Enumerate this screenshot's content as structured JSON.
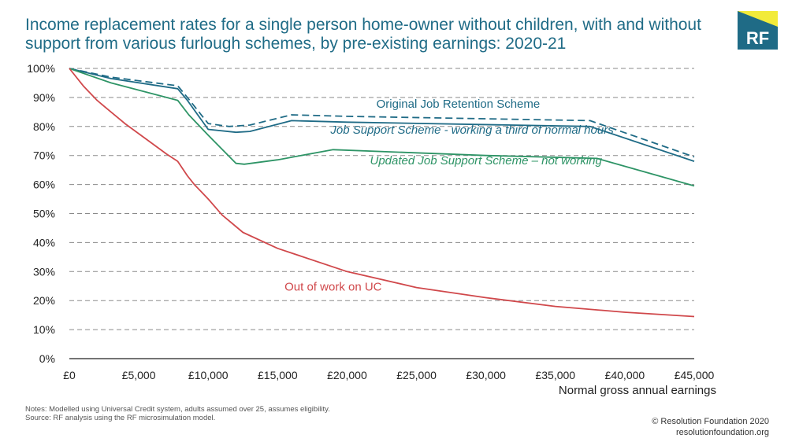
{
  "title": "Income replacement rates for a single person home-owner without children, with and without support from various furlough schemes, by pre-existing earnings: 2020-21",
  "logo": {
    "text": "RF",
    "colors": {
      "box": "#1f6b86",
      "accent": "#f2eb3a",
      "text": "#ffffff"
    }
  },
  "notes": {
    "line1": "Notes: Modelled using Universal Credit system, adults assumed over 25, assumes eligibility.",
    "line2": "Source: RF analysis using the RF microsimulation model."
  },
  "footer": {
    "copyright": "© Resolution Foundation 2020",
    "url": "resolutionfoundation.org"
  },
  "chart_data": {
    "type": "line",
    "xlabel": "Normal gross annual earnings",
    "ylabel": "",
    "xlim": [
      0,
      45000
    ],
    "ylim": [
      0,
      100
    ],
    "grid": true,
    "x_ticks": [
      {
        "value": 0,
        "label": "£0"
      },
      {
        "value": 5000,
        "label": "£5,000"
      },
      {
        "value": 10000,
        "label": "£10,000"
      },
      {
        "value": 15000,
        "label": "£15,000"
      },
      {
        "value": 20000,
        "label": "£20,000"
      },
      {
        "value": 25000,
        "label": "£25,000"
      },
      {
        "value": 30000,
        "label": "£30,000"
      },
      {
        "value": 35000,
        "label": "£35,000"
      },
      {
        "value": 40000,
        "label": "£40,000"
      },
      {
        "value": 45000,
        "label": "£45,000"
      }
    ],
    "y_ticks": [
      {
        "value": 0,
        "label": "0%"
      },
      {
        "value": 10,
        "label": "10%"
      },
      {
        "value": 20,
        "label": "20%"
      },
      {
        "value": 30,
        "label": "30%"
      },
      {
        "value": 40,
        "label": "40%"
      },
      {
        "value": 50,
        "label": "50%"
      },
      {
        "value": 60,
        "label": "60%"
      },
      {
        "value": 70,
        "label": "70%"
      },
      {
        "value": 80,
        "label": "80%"
      },
      {
        "value": 90,
        "label": "90%"
      },
      {
        "value": 100,
        "label": "100%"
      }
    ],
    "series": [
      {
        "name": "Original Job Retention Scheme",
        "color": "#1f6b86",
        "dash": true,
        "label_at": {
          "x": 28000,
          "y": 86.5
        },
        "points": [
          [
            0,
            100
          ],
          [
            3000,
            97
          ],
          [
            7800,
            94
          ],
          [
            8500,
            90
          ],
          [
            10000,
            81
          ],
          [
            11500,
            80
          ],
          [
            13000,
            80.5
          ],
          [
            16000,
            84
          ],
          [
            20000,
            83.5
          ],
          [
            37500,
            82
          ],
          [
            45000,
            69.5
          ]
        ]
      },
      {
        "name": "Job Support Scheme - working a third of normal hours",
        "color": "#1f6b86",
        "dash": false,
        "label_at": {
          "x": 29000,
          "y": 77.5
        },
        "points": [
          [
            0,
            100
          ],
          [
            3000,
            96.5
          ],
          [
            7800,
            93
          ],
          [
            8500,
            89
          ],
          [
            10000,
            79
          ],
          [
            12000,
            78
          ],
          [
            13000,
            78.3
          ],
          [
            16000,
            82
          ],
          [
            20000,
            81.5
          ],
          [
            37500,
            80
          ],
          [
            45000,
            68
          ]
        ]
      },
      {
        "name": "Updated Job Support Scheme – not working",
        "color": "#2e9466",
        "dash": false,
        "label_at": {
          "x": 30000,
          "y": 67
        },
        "points": [
          [
            0,
            100
          ],
          [
            3000,
            95
          ],
          [
            7800,
            89
          ],
          [
            8600,
            84
          ],
          [
            10000,
            77
          ],
          [
            12000,
            67.3
          ],
          [
            12600,
            67
          ],
          [
            15000,
            68.5
          ],
          [
            19000,
            72
          ],
          [
            30000,
            70
          ],
          [
            38000,
            69
          ],
          [
            45000,
            59.5
          ]
        ]
      },
      {
        "name": "Out of work on UC",
        "color": "#d0484b",
        "dash": false,
        "label_at": {
          "x": 19000,
          "y": 23.5
        },
        "points": [
          [
            0,
            100
          ],
          [
            1000,
            94
          ],
          [
            2000,
            89
          ],
          [
            3000,
            85
          ],
          [
            4000,
            81
          ],
          [
            5000,
            77.5
          ],
          [
            6000,
            74
          ],
          [
            7000,
            70.5
          ],
          [
            7800,
            68
          ],
          [
            8500,
            63
          ],
          [
            9000,
            60
          ],
          [
            10000,
            55
          ],
          [
            11000,
            49.5
          ],
          [
            12500,
            43.5
          ],
          [
            15000,
            38
          ],
          [
            20000,
            30
          ],
          [
            25000,
            24.5
          ],
          [
            30000,
            21
          ],
          [
            35000,
            18
          ],
          [
            40000,
            16
          ],
          [
            45000,
            14.5
          ]
        ]
      }
    ]
  }
}
